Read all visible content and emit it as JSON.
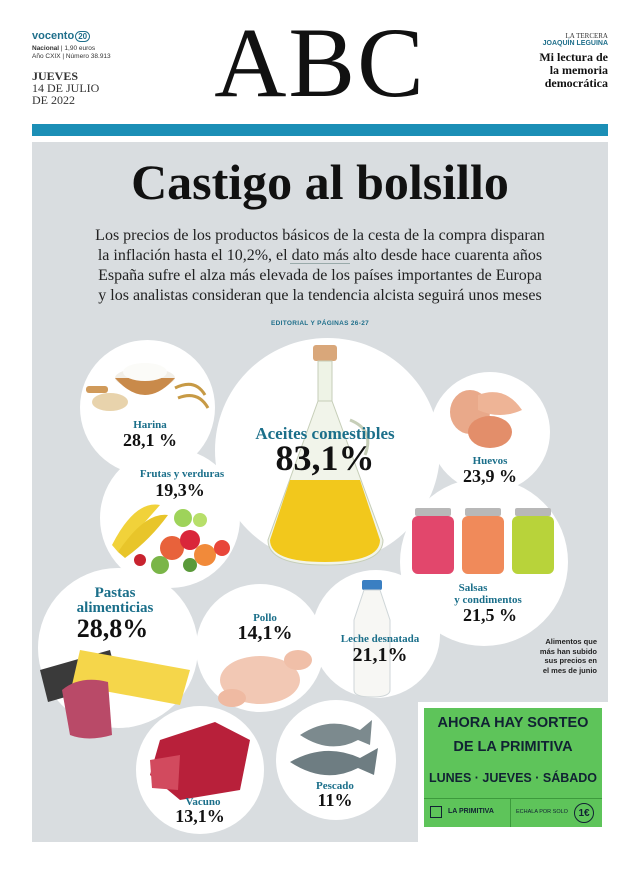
{
  "masthead": {
    "vocento": "vocento",
    "vocento_num": "20",
    "edition": "Nacional",
    "price": "1,90 euros",
    "year": "Año CXIX",
    "number": "Número 38.913",
    "day": "JUEVES",
    "date1": "14 DE JULIO",
    "date2": "DE 2022",
    "logo": "ABC",
    "section": "LA TERCERA",
    "author": "JOAQUÍN LEGUINA",
    "opinion_title_1": "Mi lectura de",
    "opinion_title_2": "la memoria",
    "opinion_title_3": "democrática"
  },
  "front": {
    "headline": "Castigo al bolsillo",
    "deck1_line1": "Los precios de los productos básicos de la cesta de la compra disparan",
    "deck1_line2": "la inflación hasta el 10,2%, el dato más alto desde hace cuarenta años",
    "deck2_line1": "España sufre el alza más elevada de los países importantes de Europa",
    "deck2_line2": "y los analistas consideran que la tendencia alcista seguirá unos meses",
    "editorial": "EDITORIAL Y PÁGINAS 26-27",
    "note_line1": "Alimentos que",
    "note_line2": "más han subido",
    "note_line3": "sus precios en",
    "note_line4": "el mes de junio"
  },
  "items": {
    "harina": {
      "label": "Harina",
      "value": "28,1 %"
    },
    "frutas": {
      "label": "Frutas y verduras",
      "value": "19,3%"
    },
    "aceites": {
      "label": "Aceites comestibles",
      "value": "83,1%"
    },
    "huevos": {
      "label": "Huevos",
      "value": "23,9 %"
    },
    "salsas": {
      "label1": "Salsas",
      "label2": "y condimentos",
      "value": "21,5 %"
    },
    "pastas": {
      "label1": "Pastas",
      "label2": "alimenticias",
      "value": "28,8%"
    },
    "pollo": {
      "label": "Pollo",
      "value": "14,1%"
    },
    "leche": {
      "label": "Leche desnatada",
      "value": "21,1%"
    },
    "vacuno": {
      "label": "Vacuno",
      "value": "13,1%"
    },
    "pescado": {
      "label": "Pescado",
      "value": "11%"
    }
  },
  "ad": {
    "line1": "AHORA HAY SORTEO",
    "line2": "DE LA PRIMITIVA",
    "line3": "LUNES · JUEVES · SÁBADO",
    "brand": "LA PRIMITIVA",
    "price_text": "ECHALA POR SOLO",
    "price": "1€"
  },
  "colors": {
    "accent_blue": "#1b8fb6",
    "label_blue": "#1b6f8a",
    "panel_gray": "#d9dde0",
    "ad_green": "#5ec45a"
  }
}
